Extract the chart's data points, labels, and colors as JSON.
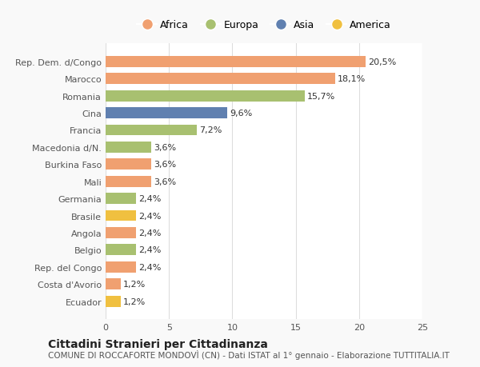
{
  "categories": [
    "Ecuador",
    "Costa d'Avorio",
    "Rep. del Congo",
    "Belgio",
    "Angola",
    "Brasile",
    "Germania",
    "Mali",
    "Burkina Faso",
    "Macedonia d/N.",
    "Francia",
    "Cina",
    "Romania",
    "Marocco",
    "Rep. Dem. d/Congo"
  ],
  "values": [
    1.2,
    1.2,
    2.4,
    2.4,
    2.4,
    2.4,
    2.4,
    3.6,
    3.6,
    3.6,
    7.2,
    9.6,
    15.7,
    18.1,
    20.5
  ],
  "labels": [
    "1,2%",
    "1,2%",
    "2,4%",
    "2,4%",
    "2,4%",
    "2,4%",
    "2,4%",
    "3,6%",
    "3,6%",
    "3,6%",
    "7,2%",
    "9,6%",
    "15,7%",
    "18,1%",
    "20,5%"
  ],
  "colors": [
    "#f0c040",
    "#f0a070",
    "#f0a070",
    "#a8c070",
    "#f0a070",
    "#f0c040",
    "#a8c070",
    "#f0a070",
    "#f0a070",
    "#a8c070",
    "#a8c070",
    "#6080b0",
    "#a8c070",
    "#f0a070",
    "#f0a070"
  ],
  "legend_labels": [
    "Africa",
    "Europa",
    "Asia",
    "America"
  ],
  "legend_colors": [
    "#f0a070",
    "#a8c070",
    "#6080b0",
    "#f0c040"
  ],
  "title": "Cittadini Stranieri per Cittadinanza",
  "subtitle": "COMUNE DI ROCCAFORTE MONDOVÌ (CN) - Dati ISTAT al 1° gennaio - Elaborazione TUTTITALIA.IT",
  "xlim": [
    0,
    25
  ],
  "xticks": [
    0,
    5,
    10,
    15,
    20,
    25
  ],
  "background_color": "#f9f9f9",
  "bar_background": "#ffffff",
  "grid_color": "#dddddd"
}
